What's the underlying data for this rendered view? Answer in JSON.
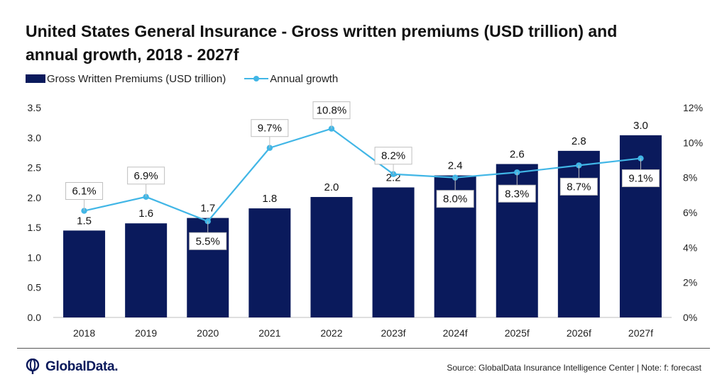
{
  "chart_data": {
    "type": "bar",
    "title": "United States General Insurance - Gross written premiums (USD trillion) and annual growth, 2018 - 2027f",
    "categories": [
      "2018",
      "2019",
      "2020",
      "2021",
      "2022",
      "2023f",
      "2024f",
      "2025f",
      "2026f",
      "2027f"
    ],
    "series": [
      {
        "name": "Gross Written Premiums (USD trillion)",
        "type": "bar",
        "axis": "left",
        "values": [
          1.45,
          1.57,
          1.66,
          1.82,
          2.01,
          2.17,
          2.37,
          2.56,
          2.78,
          3.04
        ],
        "labels": [
          "1.5",
          "1.6",
          "1.7",
          "1.8",
          "2.0",
          "2.2",
          "2.4",
          "2.6",
          "2.8",
          "3.0"
        ],
        "color": "#0a1a5c"
      },
      {
        "name": "Annual growth",
        "type": "line",
        "axis": "right",
        "values": [
          6.1,
          6.9,
          5.5,
          9.7,
          10.8,
          8.2,
          8.0,
          8.3,
          8.7,
          9.1
        ],
        "labels": [
          "6.1%",
          "6.9%",
          "5.5%",
          "9.7%",
          "10.8%",
          "8.2%",
          "8.0%",
          "8.3%",
          "8.7%",
          "9.1%"
        ],
        "color": "#41b6e6"
      }
    ],
    "y_left": {
      "min": 0,
      "max": 3.5,
      "ticks": [
        "0.0",
        "0.5",
        "1.0",
        "1.5",
        "2.0",
        "2.5",
        "3.0",
        "3.5"
      ]
    },
    "y_right": {
      "min": 0,
      "max": 12,
      "ticks": [
        "0%",
        "2%",
        "4%",
        "6%",
        "8%",
        "10%",
        "12%"
      ]
    },
    "grid": false,
    "legend_position": "top-left"
  },
  "footer": {
    "logo_text": "GlobalData.",
    "source": "Source: GlobalData Insurance Intelligence Center | Note: f: forecast"
  }
}
